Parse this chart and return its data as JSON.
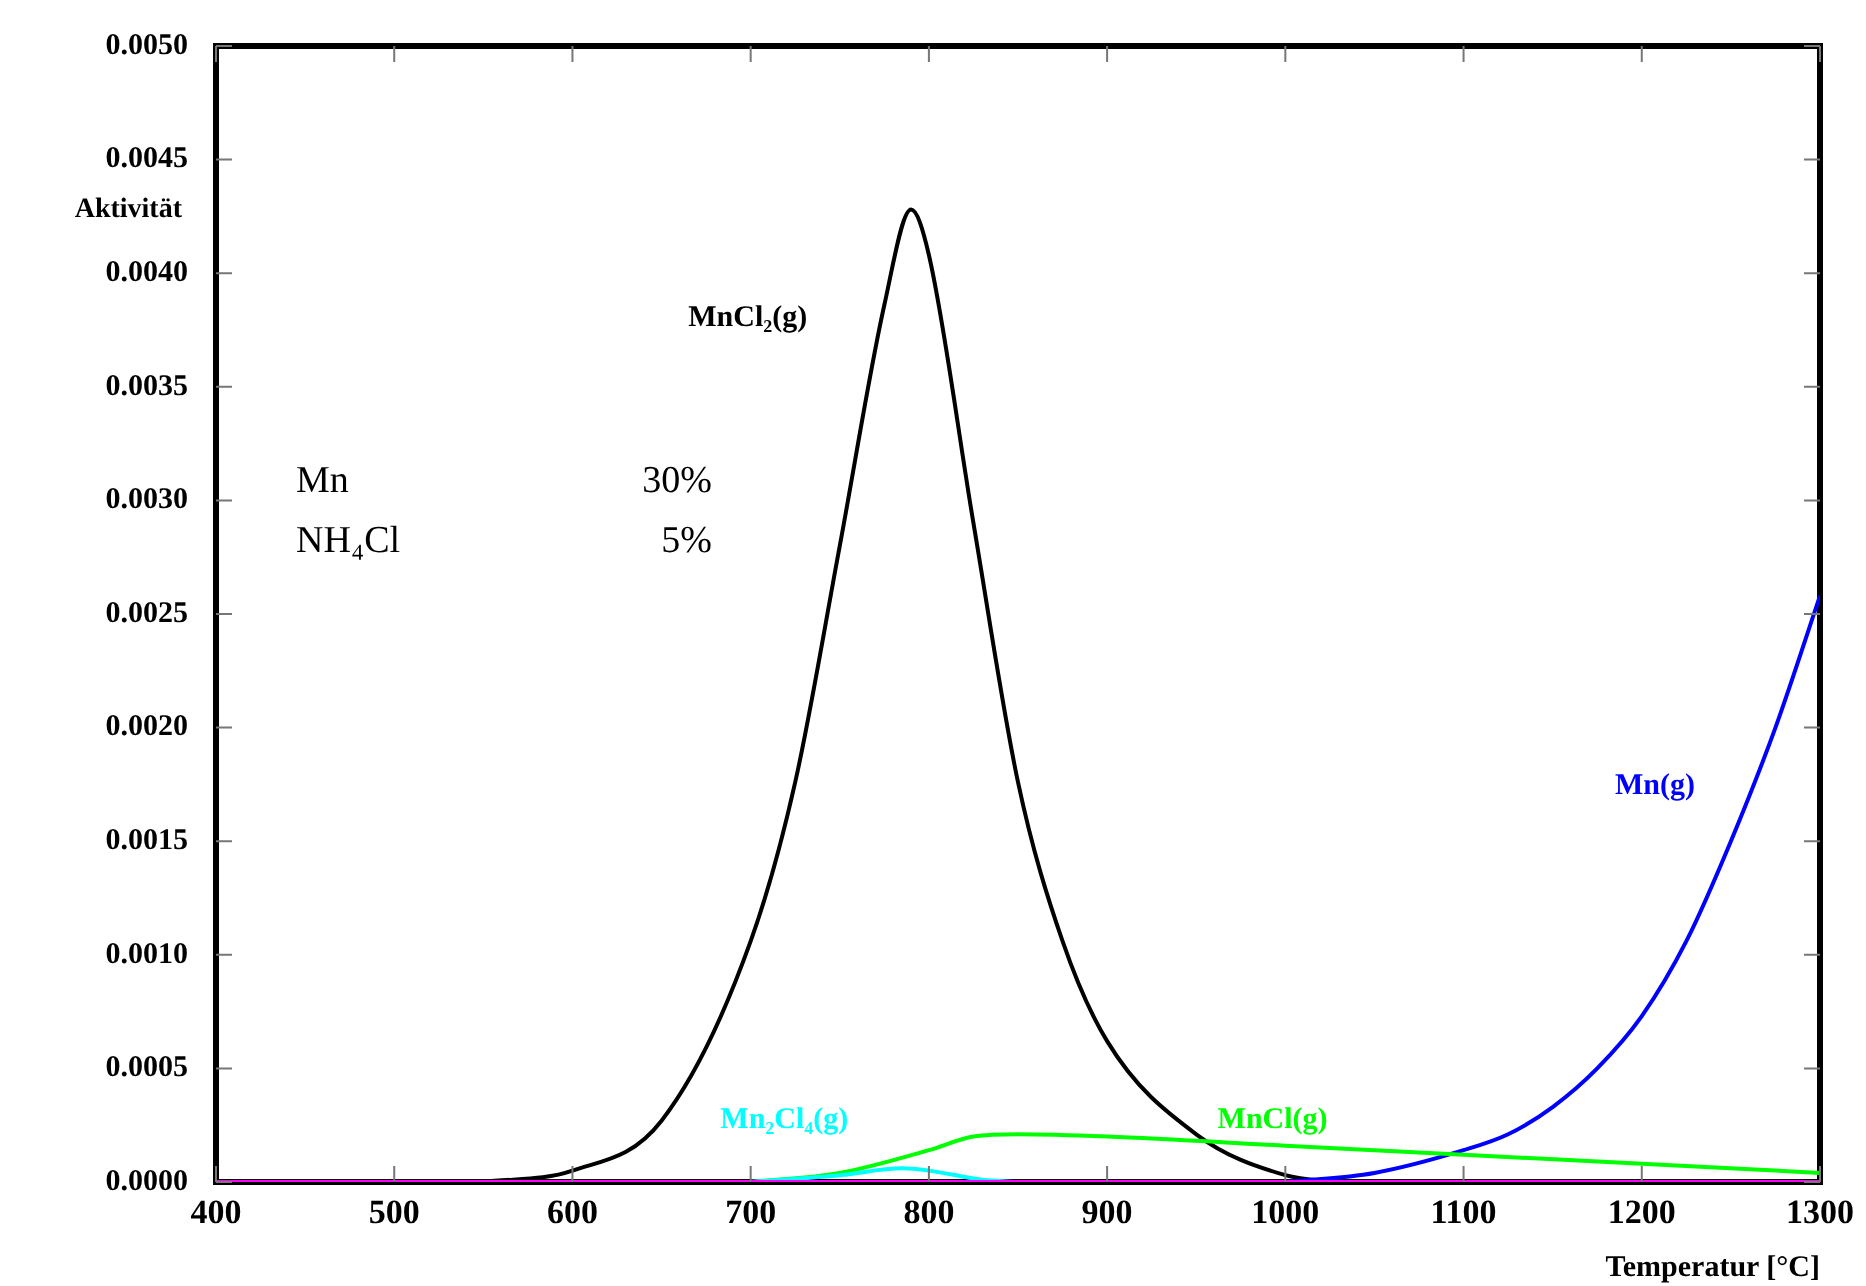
{
  "chart_data": {
    "type": "line",
    "xlabel": "Temperatur [°C]",
    "ylabel": "Aktivität",
    "xlim": [
      400,
      1300
    ],
    "xticks": [
      400,
      500,
      600,
      700,
      800,
      900,
      1000,
      1100,
      1200,
      1300
    ],
    "ylim": [
      0,
      0.005
    ],
    "yticks": [
      {
        "value": 0,
        "label": "0.0000"
      },
      {
        "value": 0.0005,
        "label": "0.0005"
      },
      {
        "value": 0.001,
        "label": "0.0010"
      },
      {
        "value": 0.0015,
        "label": "0.0015"
      },
      {
        "value": 0.002,
        "label": "0.0020"
      },
      {
        "value": 0.0025,
        "label": "0.0025"
      },
      {
        "value": 0.003,
        "label": "0.0030"
      },
      {
        "value": 0.0035,
        "label": "0.0035"
      },
      {
        "value": 0.004,
        "label": "0.0040"
      },
      {
        "value": 0.0045,
        "label": "0.0045"
      },
      {
        "value": 0.005,
        "label": "0.0050"
      }
    ],
    "grid": false,
    "legend": false,
    "marker": "none",
    "line_style": "solid",
    "annotations": [
      "Mn",
      "30%",
      "NH₄Cl",
      "5%"
    ],
    "series": [
      {
        "name": "MnCl₂(g)",
        "color": "#000000",
        "x": [
          550,
          600,
          650,
          700,
          725,
          750,
          775,
          790,
          800,
          825,
          850,
          875,
          900,
          950,
          1000,
          1030
        ],
        "values": [
          0,
          5e-05,
          0.00027,
          0.00106,
          0.00176,
          0.0028,
          0.00386,
          0.00428,
          0.00408,
          0.0029,
          0.00176,
          0.00106,
          0.00062,
          0.00021,
          3e-05,
          0
        ]
      },
      {
        "name": "Mn(g)",
        "color": "#0000ff",
        "x": [
          1000,
          1050,
          1100,
          1125,
          1150,
          1175,
          1200,
          1225,
          1250,
          1275,
          1300
        ],
        "values": [
          0,
          4e-05,
          0.00014,
          0.00021,
          0.00033,
          0.0005,
          0.00073,
          0.00106,
          0.0015,
          0.002,
          0.00258
        ]
      },
      {
        "name": "MnCl(g)",
        "color": "#00ff00",
        "x": [
          700,
          750,
          800,
          825,
          850,
          900,
          1000,
          1100,
          1200,
          1300
        ],
        "values": [
          0,
          4e-05,
          0.00014,
          0.0002,
          0.00021,
          0.0002,
          0.00016,
          0.00012,
          8e-05,
          4e-05
        ]
      },
      {
        "name": "Mn₂Cl₄(g)",
        "color": "#00ffff",
        "x": [
          700,
          750,
          785,
          800,
          830,
          850
        ],
        "values": [
          0,
          3e-05,
          6e-05,
          5e-05,
          1e-05,
          0
        ]
      },
      {
        "color": "#ff00ff",
        "x": [
          400,
          1300
        ],
        "values": [
          0,
          0
        ]
      }
    ]
  }
}
